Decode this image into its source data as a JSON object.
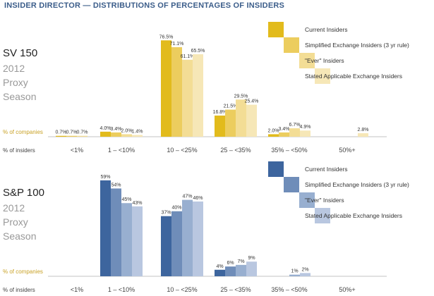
{
  "page": {
    "title": "INSIDER DIRECTOR — DISTRIBUTIONS OF PERCENTAGES OF INSIDERS"
  },
  "chart_data": [
    {
      "type": "bar",
      "index": {
        "name": "SV 150",
        "year": "2012",
        "line1": "Proxy",
        "line2": "Season"
      },
      "row_label_companies": "% of companies",
      "row_label_insiders": "% of insiders",
      "categories": [
        "<1%",
        "1 – <10%",
        "10 – <25%",
        "25 – <35%",
        "35% – <50%",
        "50%+"
      ],
      "series": [
        {
          "name": "Current Insiders",
          "color": "#e2bb1c",
          "values": [
            0.7,
            4.0,
            76.5,
            16.8,
            2.0,
            null
          ]
        },
        {
          "name": "Simplified Exchange Insiders (3 yr rule)",
          "color": "#eccd5e",
          "values": [
            0.7,
            3.4,
            71.1,
            21.5,
            3.4,
            null
          ]
        },
        {
          "name": "\"Ever\" Insiders",
          "color": "#f3dd95",
          "values": [
            0.7,
            2.0,
            61.1,
            29.5,
            6.7,
            null
          ]
        },
        {
          "name": "Stated Applicable Exchange Insiders",
          "color": "#f6e7b7",
          "values": [
            null,
            1.4,
            65.5,
            25.4,
            4.9,
            2.8
          ]
        }
      ],
      "labels": [
        [
          "0.7%",
          "4.0%",
          "76.5%",
          "16.8%",
          "2.0%",
          ""
        ],
        [
          "0.7%",
          "3.4%",
          "71.1%",
          "21.5%",
          "3.4%",
          ""
        ],
        [
          "0.7%",
          "2.0%",
          "61.1%",
          "29.5%",
          "6.7%",
          ""
        ],
        [
          "",
          "1.4%",
          "65.5%",
          "25.4%",
          "4.9%",
          "2.8%"
        ]
      ],
      "ylim": [
        0,
        80
      ],
      "text_color": "#444444",
      "accent_color": "#c9a227",
      "index_color": "#222222",
      "index_sub_color": "#999999"
    },
    {
      "type": "bar",
      "index": {
        "name": "S&P 100",
        "year": "2012",
        "line1": "Proxy",
        "line2": "Season"
      },
      "row_label_companies": "% of companies",
      "row_label_insiders": "% of insiders",
      "categories": [
        "<1%",
        "1 – <10%",
        "10 – <25%",
        "25 – <35%",
        "35% – <50%",
        "50%+"
      ],
      "series": [
        {
          "name": "Current Insiders",
          "color": "#3d659e",
          "values": [
            null,
            59,
            37,
            4,
            null,
            null
          ]
        },
        {
          "name": "Simplified Exchange Insiders (3 yr rule)",
          "color": "#6f8db9",
          "values": [
            null,
            54,
            40,
            6,
            null,
            null
          ]
        },
        {
          "name": "\"Ever\" Insiders",
          "color": "#98afd0",
          "values": [
            null,
            45,
            47,
            7,
            1,
            null
          ]
        },
        {
          "name": "Stated Applicable Exchange Insiders",
          "color": "#b9c7e0",
          "values": [
            null,
            43,
            46,
            9,
            2,
            null
          ]
        }
      ],
      "labels": [
        [
          "",
          "59%",
          "37%",
          "4%",
          "",
          ""
        ],
        [
          "",
          "54%",
          "40%",
          "6%",
          "",
          ""
        ],
        [
          "",
          "45%",
          "47%",
          "7%",
          "1%",
          ""
        ],
        [
          "",
          "43%",
          "46%",
          "9%",
          "2%",
          ""
        ]
      ],
      "ylim": [
        0,
        62
      ],
      "text_color": "#444444",
      "accent_color": "#c9a227",
      "index_color": "#222222",
      "index_sub_color": "#999999"
    }
  ]
}
